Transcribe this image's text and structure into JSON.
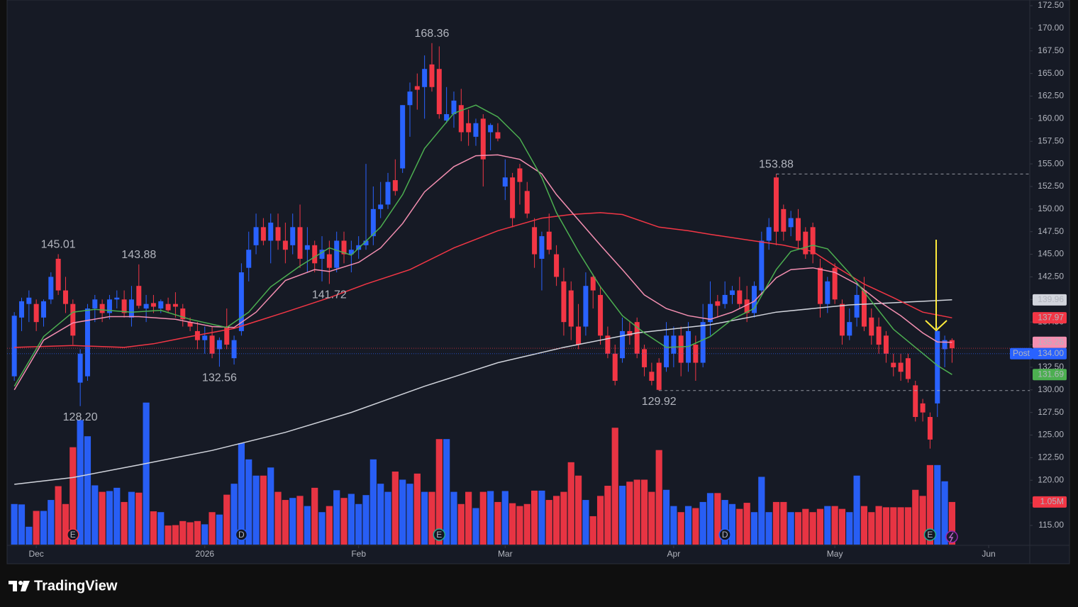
{
  "chart_data": {
    "type": "candlestick",
    "brand": "TradingView",
    "ylim": [
      112.88,
      173.13
    ],
    "yticks": [
      {
        "value": 172.5,
        "label": "172.50"
      },
      {
        "value": 170,
        "label": "170.00"
      },
      {
        "value": 167.5,
        "label": "167.50"
      },
      {
        "value": 165,
        "label": "165.00"
      },
      {
        "value": 162.5,
        "label": "162.50"
      },
      {
        "value": 160,
        "label": "160.00"
      },
      {
        "value": 157.5,
        "label": "157.50"
      },
      {
        "value": 155,
        "label": "155.00"
      },
      {
        "value": 152.5,
        "label": "152.50"
      },
      {
        "value": 150,
        "label": "150.00"
      },
      {
        "value": 147.5,
        "label": "147.50"
      },
      {
        "value": 145,
        "label": "145.00"
      },
      {
        "value": 142.5,
        "label": "142.50"
      },
      {
        "value": 140,
        "label": "140.00"
      },
      {
        "value": 137.5,
        "label": "137.50"
      },
      {
        "value": 135,
        "label": "135.00"
      },
      {
        "value": 132.5,
        "label": "132.50"
      },
      {
        "value": 130,
        "label": "130.00"
      },
      {
        "value": 127.5,
        "label": "127.50"
      },
      {
        "value": 125,
        "label": "125.00"
      },
      {
        "value": 122.5,
        "label": "122.50"
      },
      {
        "value": 120,
        "label": "120.00"
      },
      {
        "value": 117.5,
        "label": "117.50"
      },
      {
        "value": 115,
        "label": "115.00"
      }
    ],
    "xticks": [
      {
        "value": 3,
        "label": "Dec"
      },
      {
        "value": 26,
        "label": "2026"
      },
      {
        "value": 47,
        "label": "Feb"
      },
      {
        "value": 67,
        "label": "Mar"
      },
      {
        "value": 90,
        "label": "Apr"
      },
      {
        "value": 112,
        "label": "May"
      },
      {
        "value": 133,
        "label": "Jun"
      }
    ],
    "up_color": "#2962ff",
    "down_color": "#f23645",
    "open": [
      131.5,
      138,
      139.5,
      139.5,
      138,
      140,
      144.5,
      141,
      139.5,
      130.8,
      131.5,
      139,
      139.5,
      138.5,
      140,
      140,
      138,
      141.5,
      139,
      139.6,
      139,
      139.5,
      139.5,
      139,
      137.5,
      136.5,
      135.5,
      136,
      134.5,
      137,
      133.5,
      136.5,
      143.5,
      146,
      148,
      146.5,
      148,
      146.5,
      146,
      148,
      145.5,
      146,
      144.5,
      145,
      143.5,
      146.5,
      145,
      145.5,
      146,
      147,
      150,
      150.5,
      153.2,
      154.5,
      161.5,
      163.6,
      163.5,
      166,
      165.5,
      159.8,
      160.5,
      161.5,
      159.5,
      158,
      160,
      158.5,
      158.5,
      152.5,
      153.5,
      154.5,
      152,
      148,
      144.5,
      147.5,
      145,
      142,
      141,
      137,
      137,
      142.5,
      140.5,
      136,
      134,
      133.5,
      136.5,
      137.5,
      134.5,
      132,
      133,
      132.5,
      134,
      136,
      133,
      135,
      133,
      137.5,
      139.8,
      139.5,
      140.5,
      141,
      140,
      138.5,
      141,
      146.5,
      153.5,
      150,
      148,
      149,
      147.5,
      148,
      143.5,
      139.5,
      143.5,
      139.5,
      136,
      138,
      141,
      138,
      137,
      136,
      133,
      133,
      133.5,
      130.5,
      128.5,
      127,
      128.5,
      134.5,
      135.5
    ],
    "high": [
      138.6,
      140.2,
      141,
      140,
      140,
      143,
      145.01,
      142.5,
      140,
      134.5,
      139.5,
      140.5,
      140,
      140.5,
      141,
      141,
      141.5,
      143.88,
      140.5,
      140.5,
      140,
      140.2,
      140.8,
      139.5,
      138,
      137.5,
      137,
      137,
      135.8,
      139,
      136,
      144,
      147.5,
      149.5,
      149,
      149.5,
      149.5,
      148.5,
      149.5,
      150.5,
      148,
      146.5,
      147,
      146.5,
      147.5,
      147.5,
      146.5,
      147,
      155,
      152.5,
      153,
      154,
      155.5,
      161.5,
      164,
      165,
      167,
      168.36,
      168,
      163.5,
      163,
      163.3,
      161,
      160,
      160.5,
      159.5,
      159.5,
      155.5,
      154,
      155,
      153,
      149,
      147.5,
      149.5,
      146,
      143.5,
      142,
      139.5,
      143,
      142.8,
      141.5,
      137,
      135,
      138,
      137.5,
      138,
      135,
      133,
      133.5,
      137.5,
      137,
      137,
      137.5,
      136,
      139.5,
      142,
      140.5,
      142,
      141.5,
      142.5,
      141.5,
      142,
      147.5,
      149,
      153.88,
      150.5,
      149.8,
      150,
      148,
      148.5,
      144.5,
      142.5,
      144,
      140,
      139,
      142,
      142.5,
      139,
      138,
      136.5,
      134,
      134,
      134,
      131,
      129,
      127.5,
      137,
      136,
      135.7
    ],
    "low": [
      131,
      136.5,
      137.5,
      136.5,
      137,
      139.5,
      140.5,
      138.5,
      135,
      128.2,
      131,
      137.5,
      137.5,
      137.8,
      139,
      138,
      137,
      139,
      137.5,
      138.5,
      138.5,
      138.5,
      138,
      137,
      136.5,
      134.5,
      134,
      133.5,
      132.56,
      134.5,
      132.8,
      136,
      142,
      145,
      146,
      144,
      145.5,
      144,
      145,
      143.5,
      143,
      143,
      142,
      141.72,
      143,
      144,
      143,
      144.5,
      145.5,
      146,
      149,
      150,
      151.5,
      154,
      158,
      161,
      160,
      163,
      160,
      159.5,
      159,
      157.5,
      157,
      157,
      152.5,
      156.5,
      157.5,
      151,
      148,
      150.5,
      149,
      143.5,
      141,
      145,
      141.5,
      136,
      135.5,
      134.5,
      136,
      139,
      135,
      133.5,
      130.5,
      133,
      135,
      133.5,
      131.5,
      130.5,
      129.92,
      132,
      132.5,
      131.5,
      132,
      131,
      132.5,
      136,
      138,
      139,
      139.5,
      139,
      137.5,
      138,
      140.5,
      145.5,
      146,
      146.5,
      147,
      145.5,
      144.5,
      144,
      138,
      138.5,
      139.5,
      135,
      135.5,
      137,
      136.5,
      135,
      134,
      133,
      131.5,
      131,
      130.8,
      126.5,
      126.5,
      123.5,
      127,
      132.5,
      133
    ],
    "close": [
      138.2,
      139.8,
      140.2,
      137.5,
      139.8,
      142.5,
      141,
      139.5,
      136,
      134,
      139,
      140,
      138.5,
      140,
      140.2,
      138.5,
      140,
      139.3,
      139.5,
      139.2,
      139.8,
      138.8,
      139.2,
      137.8,
      137,
      135.5,
      136,
      134,
      135.5,
      135,
      135.5,
      143,
      145.5,
      148,
      146.5,
      148.5,
      146.5,
      145.5,
      148,
      144.5,
      146,
      144,
      145.5,
      143.5,
      146.5,
      145,
      145.5,
      146,
      146.5,
      150,
      150.5,
      153,
      152,
      161.5,
      163,
      163.2,
      165.5,
      163.5,
      160.5,
      160.5,
      162,
      158.5,
      158.5,
      159.5,
      155.5,
      159.3,
      157.8,
      153.5,
      149,
      153,
      149.5,
      145,
      147,
      145.5,
      142.5,
      137.5,
      137,
      135,
      141.5,
      141,
      136,
      134,
      131,
      136.5,
      136,
      134,
      132.5,
      131,
      130,
      136,
      136,
      133,
      136.5,
      133,
      137.5,
      139.5,
      139.3,
      140.5,
      141,
      139.5,
      138.5,
      141.5,
      146.5,
      148,
      147.5,
      147.5,
      149,
      146.5,
      145,
      145,
      139.5,
      142,
      140,
      136,
      137.5,
      140.5,
      137,
      136,
      135,
      134,
      132.5,
      132,
      131.2,
      127,
      127.5,
      124.5,
      136.5,
      135.5,
      134.6
    ],
    "volume": [
      1.0,
      0.99,
      0.44,
      0.83,
      0.83,
      1.1,
      1.44,
      1.0,
      2.4,
      3.07,
      2.67,
      1.46,
      1.3,
      1.32,
      1.4,
      1.05,
      1.3,
      1.28,
      3.5,
      0.82,
      0.8,
      0.47,
      0.48,
      0.58,
      0.55,
      0.58,
      0.5,
      0.8,
      0.74,
      1.23,
      1.5,
      2.5,
      2.1,
      1.7,
      1.7,
      1.9,
      1.3,
      1.1,
      1.15,
      1.2,
      0.95,
      1.4,
      0.8,
      0.95,
      1.34,
      1.15,
      1.25,
      1.0,
      1.22,
      2.1,
      1.5,
      1.3,
      1.8,
      1.6,
      1.5,
      1.75,
      1.3,
      1.3,
      2.6,
      2.6,
      1.3,
      1.0,
      1.3,
      0.9,
      1.3,
      1.32,
      1.05,
      1.32,
      1.02,
      0.95,
      1.0,
      1.33,
      1.33,
      1.1,
      1.2,
      1.3,
      2.03,
      1.7,
      1.1,
      0.7,
      1.2,
      1.45,
      2.88,
      1.45,
      1.55,
      1.6,
      1.6,
      1.3,
      2.33,
      1.35,
      0.95,
      0.8,
      0.95,
      0.9,
      1.05,
      1.27,
      1.27,
      1.1,
      1.0,
      0.88,
      1.03,
      0.8,
      1.67,
      0.8,
      1.05,
      1.05,
      0.8,
      0.8,
      0.88,
      0.8,
      0.88,
      0.95,
      0.95,
      0.88,
      0.8,
      1.7,
      0.95,
      0.8,
      0.95,
      0.92,
      0.92,
      0.92,
      0.92,
      1.35,
      1.2,
      1.96,
      1.96,
      1.56,
      1.05
    ],
    "vlim": [
      0,
      3.6
    ],
    "last_volume_label": "1.05M",
    "ma": [
      {
        "color": "#d1d4dc",
        "x": [
          0,
          8,
          17,
          27,
          37,
          46,
          56,
          66,
          75,
          85,
          95,
          104,
          114,
          124,
          128
        ],
        "values": [
          119.55,
          120.3,
          121.7,
          123.3,
          125.3,
          127.5,
          130.4,
          133,
          134.7,
          136.3,
          137.2,
          138.6,
          139.4,
          139.8,
          139.96
        ]
      },
      {
        "color": "#f23645",
        "x": [
          0,
          8,
          15,
          19,
          24,
          30,
          37,
          43,
          48,
          54,
          60,
          66,
          72,
          76,
          80,
          83,
          88,
          92,
          95,
          100,
          105,
          109,
          112,
          116,
          120,
          124,
          128
        ],
        "values": [
          134.7,
          134.9,
          134.7,
          135.1,
          135.9,
          136.8,
          138.6,
          140.2,
          141.7,
          143.3,
          145.7,
          147.6,
          149,
          149.4,
          149.6,
          149.4,
          148,
          147.6,
          147.2,
          146.6,
          146,
          145.3,
          143.7,
          141.7,
          140.2,
          138.6,
          137.97
        ]
      },
      {
        "color": "#f48fb1",
        "x": [
          0,
          4,
          8,
          13,
          17,
          22,
          27,
          30,
          33,
          37,
          41,
          43,
          47,
          50,
          53,
          56,
          60,
          63,
          66,
          69,
          72,
          74,
          77,
          80,
          83,
          86,
          89,
          92,
          95,
          98,
          101,
          104,
          106,
          109,
          112,
          115,
          118,
          121,
          124,
          126,
          128
        ],
        "values": [
          130,
          135.5,
          137.4,
          138.1,
          138.1,
          137.8,
          137,
          136.9,
          138.6,
          142.1,
          143.3,
          143.1,
          144.1,
          145.7,
          148.4,
          151.9,
          154.7,
          155.9,
          156,
          155.5,
          153.9,
          151.6,
          148.8,
          146,
          143.3,
          140.5,
          139,
          138.2,
          137.8,
          138.6,
          139.8,
          142.4,
          143.3,
          143.5,
          143,
          141.7,
          139.8,
          138.2,
          136.3,
          135.3,
          135.26
        ]
      },
      {
        "color": "#4caf50",
        "x": [
          0,
          4,
          8,
          11,
          16,
          20,
          24,
          29,
          32,
          35,
          39,
          43,
          46,
          50,
          53,
          56,
          60,
          63,
          66,
          69,
          72,
          74,
          77,
          80,
          83,
          86,
          89,
          92,
          95,
          98,
          101,
          104,
          106,
          109,
          111,
          114,
          117,
          120,
          123,
          126,
          128
        ],
        "values": [
          130.4,
          135.9,
          138.6,
          138.9,
          138.6,
          138.8,
          137.8,
          136.9,
          138.6,
          141.4,
          143.7,
          145.7,
          144.9,
          148,
          151.6,
          156.7,
          160.6,
          161.5,
          160.2,
          157.8,
          153.5,
          149.6,
          145.3,
          141.4,
          138.2,
          136.3,
          134.7,
          134.8,
          135.9,
          137.8,
          139,
          143.3,
          145.3,
          146,
          145.6,
          142.9,
          139.8,
          136.7,
          134.7,
          132.7,
          131.69
        ]
      }
    ],
    "post_price": {
      "value": 134,
      "label": "134.00",
      "tag": "Post"
    },
    "annotations": [
      {
        "value": 145.01
      },
      {
        "value": 143.88
      },
      {
        "value": 168.36
      },
      {
        "value": 153.88,
        "dashed": true
      },
      {
        "value": 128.2,
        "label": "128.20"
      },
      {
        "value": 132.56
      },
      {
        "value": 141.72
      },
      {
        "value": 129.92,
        "dashed": true
      }
    ],
    "events": [
      {
        "label": "E",
        "index": 8,
        "color": "#f23645"
      },
      {
        "label": "D",
        "index": 31,
        "color": "#2962ff"
      },
      {
        "label": "E",
        "index": 58,
        "color": "#22ab94"
      },
      {
        "label": "D",
        "index": 97,
        "color": "#2962ff"
      },
      {
        "label": "E",
        "index": 125,
        "color": "#22ab94"
      }
    ]
  }
}
